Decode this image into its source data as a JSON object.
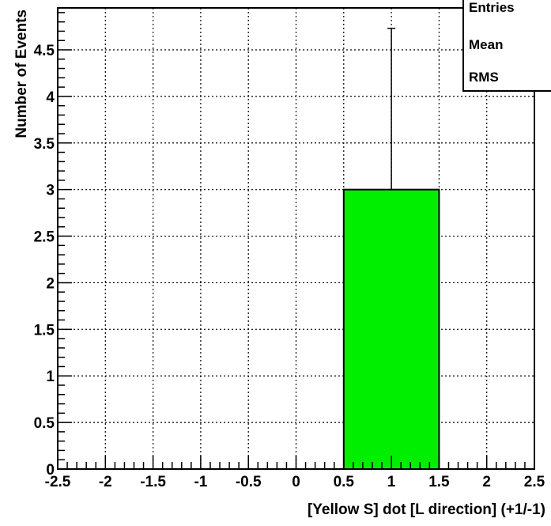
{
  "chart_data": {
    "type": "bar",
    "xlabel": "[Yellow S] dot [L direction] (+1/-1)",
    "ylabel": "Number of Events",
    "xlim": [
      -2.5,
      2.5
    ],
    "ylim": [
      0,
      4.95
    ],
    "grid": true,
    "bins": [
      {
        "x_low": 0.5,
        "x_high": 1.5,
        "value": 3,
        "error_high": 4.73
      }
    ],
    "bar_color": "#00ee00",
    "x_ticks": [
      {
        "value": -2.5,
        "label": "-2.5"
      },
      {
        "value": -2,
        "label": "-2"
      },
      {
        "value": -1.5,
        "label": "-1.5"
      },
      {
        "value": -1,
        "label": "-1"
      },
      {
        "value": -0.5,
        "label": "-0.5"
      },
      {
        "value": 0,
        "label": "0"
      },
      {
        "value": 0.5,
        "label": "0.5"
      },
      {
        "value": 1,
        "label": "1"
      },
      {
        "value": 1.5,
        "label": "1.5"
      },
      {
        "value": 2,
        "label": "2"
      },
      {
        "value": 2.5,
        "label": "2.5"
      }
    ],
    "y_ticks": [
      {
        "value": 0,
        "label": "0"
      },
      {
        "value": 0.5,
        "label": "0.5"
      },
      {
        "value": 1,
        "label": "1"
      },
      {
        "value": 1.5,
        "label": "1.5"
      },
      {
        "value": 2,
        "label": "2"
      },
      {
        "value": 2.5,
        "label": "2.5"
      },
      {
        "value": 3,
        "label": "3"
      },
      {
        "value": 3.5,
        "label": "3.5"
      },
      {
        "value": 4,
        "label": "4"
      },
      {
        "value": 4.5,
        "label": "4.5"
      }
    ],
    "stats_box": {
      "labels": [
        "Entries",
        "Mean",
        "RMS"
      ],
      "placement": "top-right"
    }
  }
}
